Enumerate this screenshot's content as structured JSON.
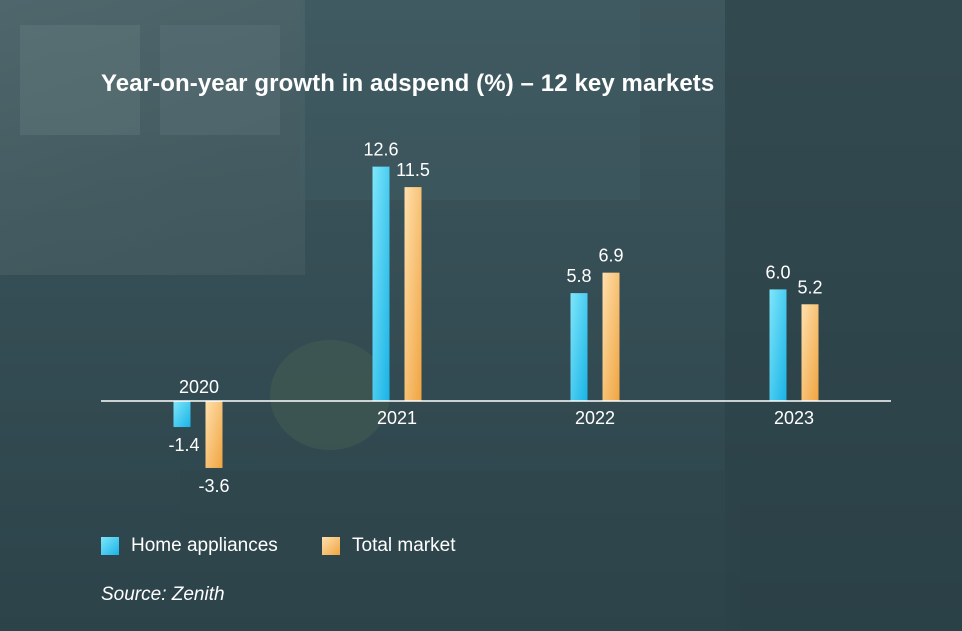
{
  "chart_data": {
    "type": "bar",
    "title": "Year-on-year growth in adspend (%) – 12 key markets",
    "categories": [
      "2020",
      "2021",
      "2022",
      "2023"
    ],
    "series": [
      {
        "name": "Home appliances",
        "values": [
          -1.4,
          12.6,
          5.8,
          6.0
        ],
        "labels": [
          "-1.4",
          "12.6",
          "5.8",
          "6.0"
        ]
      },
      {
        "name": "Total market",
        "values": [
          -3.6,
          11.5,
          6.9,
          5.2
        ],
        "labels": [
          "-3.6",
          "11.5",
          "6.9",
          "5.2"
        ]
      }
    ],
    "ylim": [
      -3.6,
      12.6
    ],
    "grid": false,
    "legend": "bottom-left",
    "source": "Source: Zenith"
  },
  "colors": {
    "home_appliances": "#27c3ee",
    "total_market": "#f4b45c",
    "text": "#ffffff",
    "axis": "#ffffff"
  }
}
